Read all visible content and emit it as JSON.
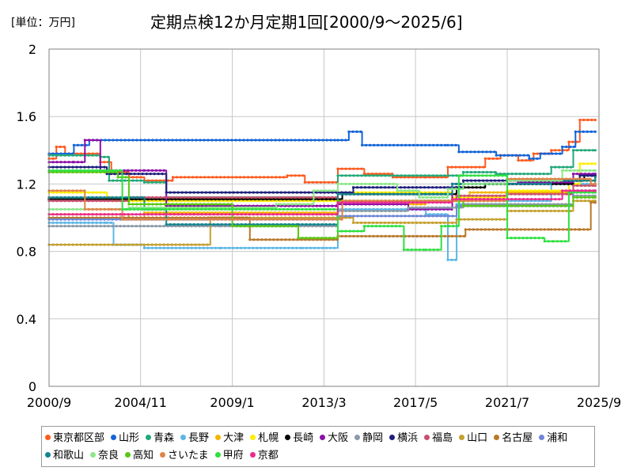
{
  "unit_label": "[単位：万円]",
  "chart_data": {
    "type": "line",
    "title": "定期点検12か月定期1回[2000/9～2025/6]",
    "xlabel": "",
    "ylabel": "",
    "xlim": [
      2000.67,
      2025.67
    ],
    "ylim": [
      0,
      2
    ],
    "x_ticks": [
      {
        "value": 2000.67,
        "label": "2000/9"
      },
      {
        "value": 2004.83,
        "label": "2004/11"
      },
      {
        "value": 2009.0,
        "label": "2009/1"
      },
      {
        "value": 2013.17,
        "label": "2013/3"
      },
      {
        "value": 2017.33,
        "label": "2017/5"
      },
      {
        "value": 2021.5,
        "label": "2021/7"
      },
      {
        "value": 2025.67,
        "label": "2025/9"
      }
    ],
    "y_ticks": [
      0,
      0.4,
      0.8,
      1.2,
      1.6,
      2
    ],
    "y_tick_labels": [
      "0",
      "0.4",
      "0.8",
      "1.2",
      "1.6",
      "2"
    ],
    "grid": true,
    "legend_position": "bottom",
    "series": [
      {
        "name": "東京都区部",
        "color": "#ff5a1f",
        "points": [
          [
            2000.67,
            1.35
          ],
          [
            2001.0,
            1.42
          ],
          [
            2001.4,
            1.38
          ],
          [
            2003.0,
            1.33
          ],
          [
            2003.5,
            1.27
          ],
          [
            2004.3,
            1.24
          ],
          [
            2005.0,
            1.22
          ],
          [
            2006.3,
            1.24
          ],
          [
            2011.5,
            1.25
          ],
          [
            2012.3,
            1.21
          ],
          [
            2013.8,
            1.29
          ],
          [
            2015.0,
            1.26
          ],
          [
            2016.3,
            1.24
          ],
          [
            2017.8,
            1.24
          ],
          [
            2018.8,
            1.3
          ],
          [
            2020.5,
            1.35
          ],
          [
            2021.2,
            1.37
          ],
          [
            2022.0,
            1.34
          ],
          [
            2022.7,
            1.38
          ],
          [
            2023.5,
            1.4
          ],
          [
            2024.3,
            1.45
          ],
          [
            2024.8,
            1.58
          ],
          [
            2025.5,
            1.58
          ]
        ]
      },
      {
        "name": "山形",
        "color": "#1464d8",
        "points": [
          [
            2000.67,
            1.38
          ],
          [
            2001.8,
            1.43
          ],
          [
            2002.5,
            1.46
          ],
          [
            2013.8,
            1.46
          ],
          [
            2014.3,
            1.51
          ],
          [
            2014.9,
            1.43
          ],
          [
            2018.8,
            1.43
          ],
          [
            2019.3,
            1.39
          ],
          [
            2021.0,
            1.37
          ],
          [
            2022.5,
            1.35
          ],
          [
            2023.0,
            1.38
          ],
          [
            2024.0,
            1.42
          ],
          [
            2024.6,
            1.51
          ],
          [
            2025.5,
            1.51
          ]
        ]
      },
      {
        "name": "青森",
        "color": "#22a878",
        "points": [
          [
            2000.67,
            1.37
          ],
          [
            2003.0,
            1.36
          ],
          [
            2003.4,
            1.22
          ],
          [
            2005.0,
            1.21
          ],
          [
            2006.0,
            1.12
          ],
          [
            2013.0,
            1.12
          ],
          [
            2013.8,
            1.25
          ],
          [
            2019.5,
            1.27
          ],
          [
            2021.0,
            1.26
          ],
          [
            2023.5,
            1.3
          ],
          [
            2024.5,
            1.4
          ],
          [
            2025.5,
            1.4
          ]
        ]
      },
      {
        "name": "長野",
        "color": "#5cb7e6",
        "points": [
          [
            2000.67,
            0.97
          ],
          [
            2003.3,
            0.97
          ],
          [
            2003.6,
            0.84
          ],
          [
            2005.0,
            0.82
          ],
          [
            2008.5,
            0.82
          ],
          [
            2012.2,
            0.82
          ],
          [
            2013.8,
            1.05
          ],
          [
            2017.8,
            1.02
          ],
          [
            2018.8,
            0.75
          ],
          [
            2019.2,
            1.08
          ],
          [
            2021.5,
            1.1
          ],
          [
            2023.5,
            1.2
          ],
          [
            2025.5,
            1.25
          ]
        ]
      },
      {
        "name": "大津",
        "color": "#f5b400",
        "points": [
          [
            2000.67,
            1.02
          ],
          [
            2004.3,
            1.0
          ],
          [
            2005.0,
            1.03
          ],
          [
            2013.8,
            1.08
          ],
          [
            2017.8,
            1.1
          ],
          [
            2019.8,
            1.15
          ],
          [
            2022.5,
            1.15
          ],
          [
            2024.5,
            1.22
          ],
          [
            2025.5,
            1.22
          ]
        ]
      },
      {
        "name": "札幌",
        "color": "#ffee00",
        "points": [
          [
            2000.67,
            1.15
          ],
          [
            2003.3,
            1.12
          ],
          [
            2003.6,
            1.1
          ],
          [
            2013.8,
            1.15
          ],
          [
            2019.0,
            1.12
          ],
          [
            2021.5,
            1.16
          ],
          [
            2024.3,
            1.2
          ],
          [
            2024.8,
            1.32
          ],
          [
            2025.5,
            1.32
          ]
        ]
      },
      {
        "name": "長崎",
        "color": "#000000",
        "points": [
          [
            2000.67,
            1.11
          ],
          [
            2013.8,
            1.11
          ],
          [
            2014.0,
            1.14
          ],
          [
            2018.8,
            1.14
          ],
          [
            2019.2,
            1.18
          ],
          [
            2020.5,
            1.2
          ],
          [
            2024.5,
            1.22
          ],
          [
            2025.0,
            1.25
          ],
          [
            2025.5,
            1.25
          ]
        ]
      },
      {
        "name": "大阪",
        "color": "#8c0fa8",
        "points": [
          [
            2000.67,
            1.33
          ],
          [
            2001.8,
            1.33
          ],
          [
            2002.3,
            1.46
          ],
          [
            2003.0,
            1.28
          ],
          [
            2005.0,
            1.28
          ],
          [
            2006.0,
            1.07
          ],
          [
            2013.0,
            1.07
          ],
          [
            2013.8,
            1.08
          ],
          [
            2017.0,
            1.05
          ],
          [
            2019.0,
            1.2
          ],
          [
            2022.0,
            1.21
          ],
          [
            2024.5,
            1.26
          ],
          [
            2025.5,
            1.26
          ]
        ]
      },
      {
        "name": "静岡",
        "color": "#8a9aa8",
        "points": [
          [
            2000.67,
            0.95
          ],
          [
            2008.5,
            0.95
          ],
          [
            2013.8,
            1.04
          ],
          [
            2017.0,
            1.06
          ],
          [
            2019.5,
            1.08
          ],
          [
            2022.0,
            1.08
          ],
          [
            2024.5,
            1.13
          ],
          [
            2025.5,
            1.13
          ]
        ]
      },
      {
        "name": "横浜",
        "color": "#1e1e7c",
        "points": [
          [
            2000.67,
            1.3
          ],
          [
            2003.3,
            1.26
          ],
          [
            2006.0,
            1.15
          ],
          [
            2013.8,
            1.15
          ],
          [
            2014.5,
            1.18
          ],
          [
            2018.8,
            1.18
          ],
          [
            2019.5,
            1.22
          ],
          [
            2022.5,
            1.22
          ],
          [
            2024.8,
            1.25
          ],
          [
            2025.5,
            1.25
          ]
        ]
      },
      {
        "name": "福島",
        "color": "#c8506e",
        "points": [
          [
            2000.67,
            1.1
          ],
          [
            2004.3,
            1.12
          ],
          [
            2013.0,
            1.12
          ],
          [
            2013.8,
            1.1
          ],
          [
            2016.5,
            1.1
          ],
          [
            2019.2,
            1.13
          ],
          [
            2021.5,
            1.14
          ],
          [
            2024.5,
            1.19
          ],
          [
            2025.5,
            1.19
          ]
        ]
      },
      {
        "name": "山口",
        "color": "#c4a030",
        "points": [
          [
            2000.67,
            0.84
          ],
          [
            2007.5,
            0.84
          ],
          [
            2008.0,
            1.0
          ],
          [
            2013.8,
            1.0
          ],
          [
            2014.5,
            0.97
          ],
          [
            2019.2,
            0.99
          ],
          [
            2021.5,
            1.04
          ],
          [
            2024.5,
            1.1
          ],
          [
            2025.5,
            1.1
          ]
        ]
      },
      {
        "name": "名古屋",
        "color": "#b8782a",
        "points": [
          [
            2000.67,
            1.0
          ],
          [
            2004.3,
            1.0
          ],
          [
            2009.5,
            1.0
          ],
          [
            2009.8,
            0.87
          ],
          [
            2013.8,
            0.89
          ],
          [
            2019.0,
            0.89
          ],
          [
            2019.6,
            0.93
          ],
          [
            2023.5,
            0.93
          ],
          [
            2024.8,
            0.93
          ],
          [
            2025.3,
            1.09
          ],
          [
            2025.5,
            1.09
          ]
        ]
      },
      {
        "name": "浦和",
        "color": "#6f86d6",
        "points": [
          [
            2000.67,
            0.99
          ],
          [
            2008.0,
            0.99
          ],
          [
            2013.8,
            1.01
          ],
          [
            2019.2,
            1.07
          ],
          [
            2022.0,
            1.07
          ],
          [
            2024.5,
            1.16
          ],
          [
            2025.5,
            1.16
          ]
        ]
      },
      {
        "name": "和歌山",
        "color": "#14848e",
        "points": [
          [
            2000.67,
            1.12
          ],
          [
            2004.0,
            1.12
          ],
          [
            2005.0,
            1.05
          ],
          [
            2006.0,
            0.96
          ],
          [
            2012.0,
            0.96
          ],
          [
            2013.8,
            1.14
          ],
          [
            2017.8,
            1.14
          ],
          [
            2019.0,
            1.2
          ],
          [
            2023.5,
            1.22
          ],
          [
            2025.5,
            1.24
          ]
        ]
      },
      {
        "name": "奈良",
        "color": "#8ee68a",
        "points": [
          [
            2000.67,
            1.05
          ],
          [
            2004.3,
            1.06
          ],
          [
            2008.0,
            1.06
          ],
          [
            2011.0,
            1.08
          ],
          [
            2012.7,
            1.16
          ],
          [
            2013.8,
            1.2
          ],
          [
            2016.5,
            1.16
          ],
          [
            2017.5,
            1.12
          ],
          [
            2018.8,
            1.17
          ],
          [
            2019.5,
            1.2
          ],
          [
            2021.5,
            1.22
          ],
          [
            2024.0,
            1.28
          ],
          [
            2025.5,
            1.28
          ]
        ]
      },
      {
        "name": "高知",
        "color": "#58c814",
        "points": [
          [
            2000.67,
            1.27
          ],
          [
            2003.8,
            1.24
          ],
          [
            2004.3,
            1.08
          ],
          [
            2008.8,
            1.08
          ],
          [
            2009.0,
            0.95
          ],
          [
            2012.0,
            0.88
          ],
          [
            2013.8,
            1.1
          ],
          [
            2017.0,
            1.1
          ],
          [
            2019.5,
            1.07
          ],
          [
            2022.5,
            1.07
          ],
          [
            2024.5,
            1.12
          ],
          [
            2025.5,
            1.12
          ]
        ]
      },
      {
        "name": "さいたま",
        "color": "#e08448",
        "points": [
          [
            2000.67,
            1.16
          ],
          [
            2002.3,
            1.05
          ],
          [
            2003.5,
            1.05
          ],
          [
            2004.0,
            0.99
          ],
          [
            2013.8,
            0.99
          ],
          [
            2014.0,
            1.1
          ],
          [
            2019.0,
            1.1
          ],
          [
            2021.5,
            1.23
          ],
          [
            2024.0,
            1.23
          ],
          [
            2025.3,
            1.2
          ],
          [
            2025.5,
            1.2
          ]
        ]
      },
      {
        "name": "甲府",
        "color": "#2ee040",
        "points": [
          [
            2000.67,
            1.28
          ],
          [
            2004.0,
            1.05
          ],
          [
            2009.0,
            1.05
          ],
          [
            2012.0,
            1.05
          ],
          [
            2013.8,
            0.92
          ],
          [
            2015.0,
            0.95
          ],
          [
            2016.8,
            0.81
          ],
          [
            2017.8,
            0.81
          ],
          [
            2018.5,
            0.95
          ],
          [
            2019.3,
            1.25
          ],
          [
            2021.5,
            0.88
          ],
          [
            2023.2,
            0.86
          ],
          [
            2023.6,
            0.86
          ],
          [
            2024.3,
            1.15
          ],
          [
            2025.5,
            1.15
          ]
        ]
      },
      {
        "name": "京都",
        "color": "#ec2a8e",
        "points": [
          [
            2000.67,
            1.02
          ],
          [
            2006.0,
            1.02
          ],
          [
            2013.0,
            1.02
          ],
          [
            2013.8,
            1.09
          ],
          [
            2016.5,
            1.09
          ],
          [
            2019.0,
            1.11
          ],
          [
            2024.0,
            1.16
          ],
          [
            2025.5,
            1.16
          ]
        ]
      }
    ]
  }
}
